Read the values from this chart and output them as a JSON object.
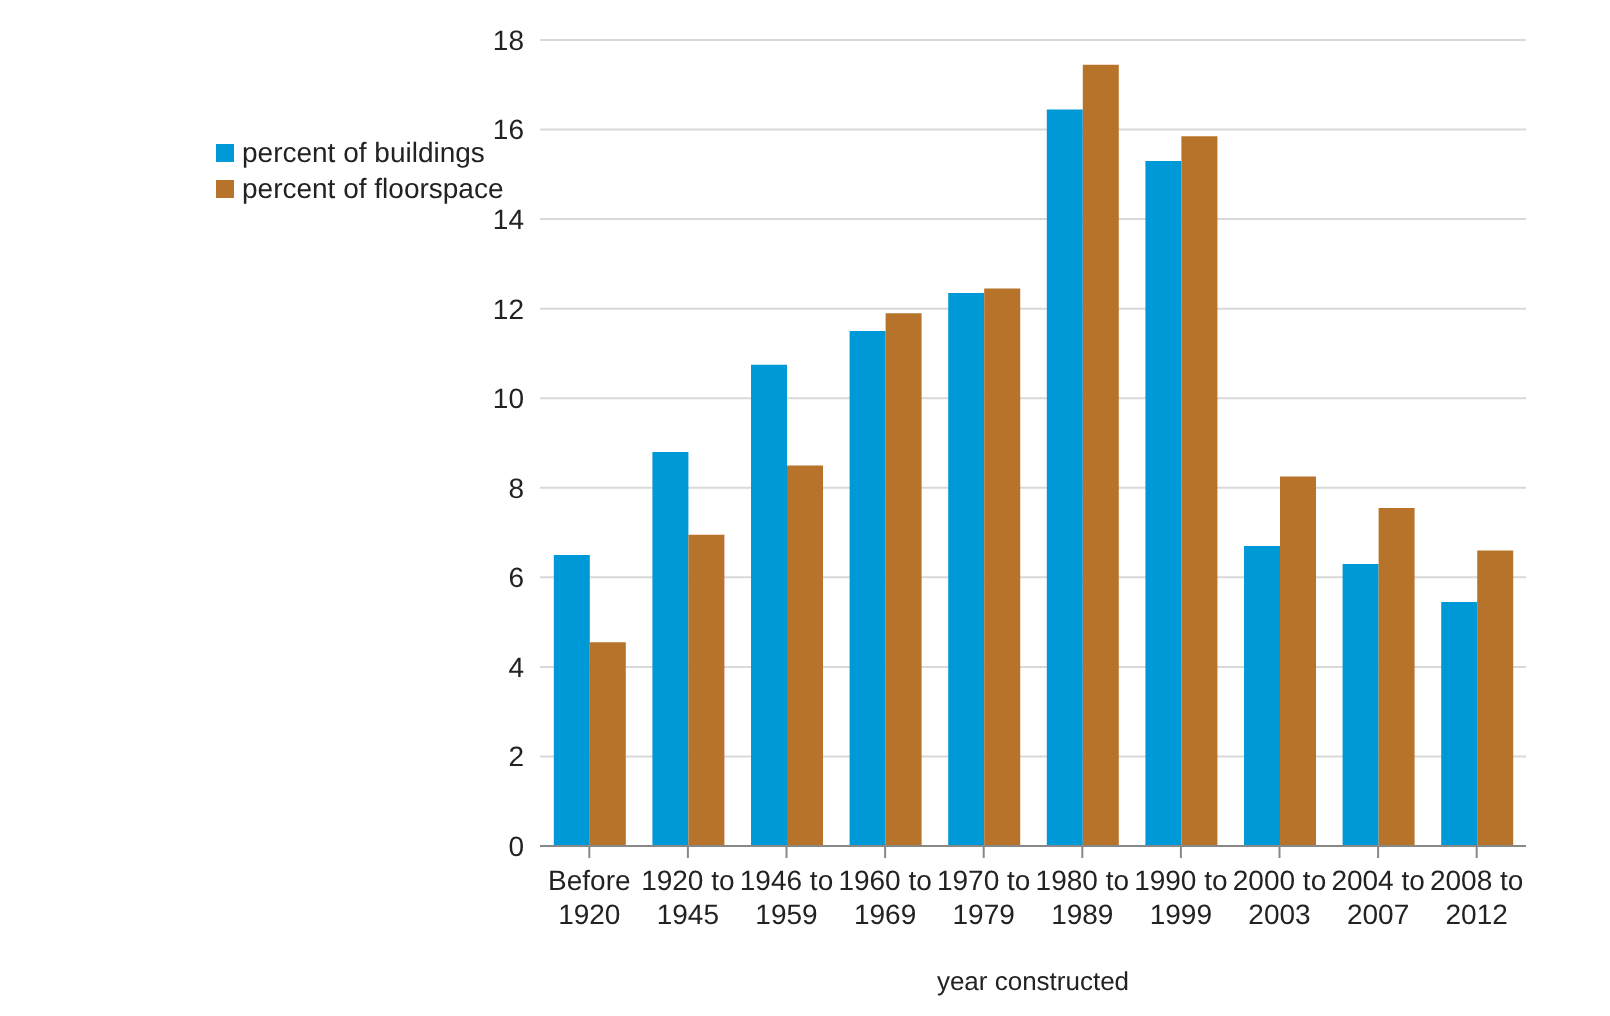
{
  "chart_data": {
    "type": "bar",
    "xlabel": "year constructed",
    "categories": [
      "Before 1920",
      "1920 to 1945",
      "1946 to 1959",
      "1960 to 1969",
      "1970 to 1979",
      "1980 to 1989",
      "1990 to 1999",
      "2000 to 2003",
      "2004 to 2007",
      "2008 to 2012"
    ],
    "series": [
      {
        "name": "percent of buildings",
        "color": "#0099d8",
        "values": [
          6.5,
          8.8,
          10.75,
          11.5,
          12.35,
          16.45,
          15.3,
          6.7,
          6.3,
          5.45
        ]
      },
      {
        "name": "percent of floorspace",
        "color": "#b8732b",
        "values": [
          4.55,
          6.95,
          8.5,
          11.9,
          12.45,
          17.45,
          15.85,
          8.25,
          7.55,
          6.6
        ]
      }
    ],
    "ylim": [
      0,
      18
    ],
    "yticks": [
      0,
      2,
      4,
      6,
      8,
      10,
      12,
      14,
      16,
      18
    ],
    "grid": "y",
    "legend": "top left"
  }
}
